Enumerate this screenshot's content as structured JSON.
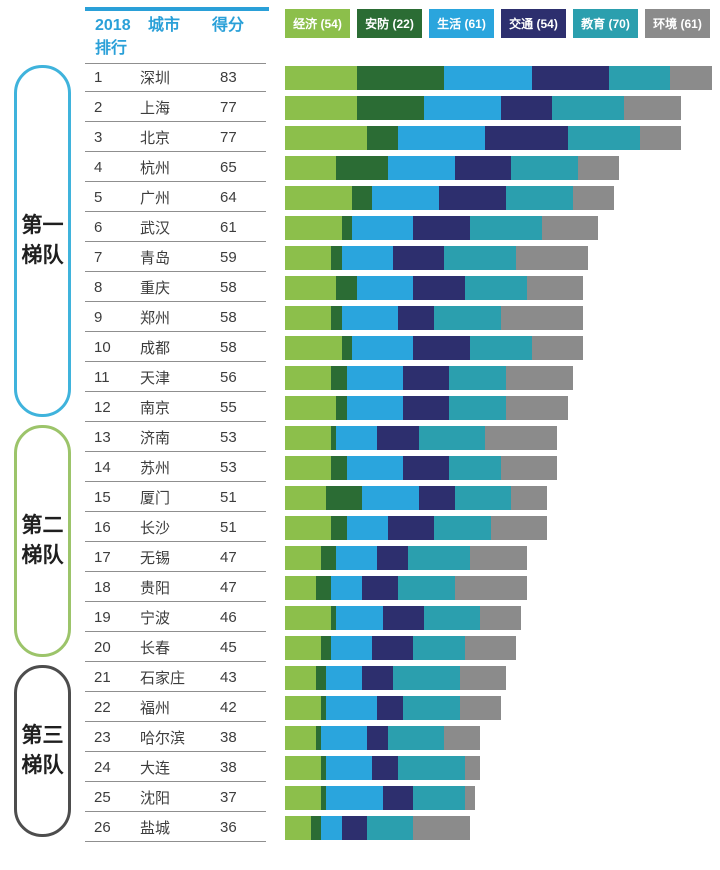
{
  "table": {
    "header": {
      "rank_line1": "2018",
      "rank_line2": "排行",
      "city": "城市",
      "score": "得分"
    },
    "header_text_color": "#2aa0d8",
    "header_rule_color": "#2aa0d8"
  },
  "legend": [
    {
      "key": "economy",
      "label": "经济 (54)",
      "color": "#8cbf4b"
    },
    {
      "key": "security",
      "label": "安防 (22)",
      "color": "#2b6c34"
    },
    {
      "key": "life",
      "label": "生活 (61)",
      "color": "#2aa5dd"
    },
    {
      "key": "transport",
      "label": "交通 (54)",
      "color": "#2d2f6e"
    },
    {
      "key": "education",
      "label": "教育 (70)",
      "color": "#2b9fae"
    },
    {
      "key": "environment",
      "label": "环境 (61)",
      "color": "#8b8b8b"
    }
  ],
  "tiers": [
    {
      "label": "第一梯队",
      "lines": "第一\n梯队",
      "color": "#3fb3dc",
      "row_start": 1,
      "row_end": 12
    },
    {
      "label": "第二梯队",
      "lines": "第二\n梯队",
      "color": "#9cc46a",
      "row_start": 13,
      "row_end": 20
    },
    {
      "label": "第三梯队",
      "lines": "第三\n梯队",
      "color": "#4d4d4d",
      "row_start": 21,
      "row_end": 26
    }
  ],
  "chart_data": {
    "type": "bar",
    "orientation": "horizontal",
    "stacked": true,
    "title": "2018 排行 — 城市得分 (stacked by category)",
    "series_names": [
      "经济",
      "安防",
      "生活",
      "交通",
      "教育",
      "环境"
    ],
    "series_caps": [
      54,
      22,
      61,
      54,
      70,
      61
    ],
    "series_colors": [
      "#8cbf4b",
      "#2b6c34",
      "#2aa5dd",
      "#2d2f6e",
      "#2b9fae",
      "#8b8b8b"
    ],
    "xlim": [
      0,
      85
    ],
    "grid": false,
    "legend_position": "top",
    "value_note": "segment values estimated from bar lengths; segments of each row sum to the city total score",
    "rows": [
      {
        "rank": 1,
        "city": "深圳",
        "score": 83,
        "values": [
          14,
          17,
          17,
          15,
          12,
          8
        ]
      },
      {
        "rank": 2,
        "city": "上海",
        "score": 77,
        "values": [
          14,
          13,
          15,
          10,
          14,
          11
        ]
      },
      {
        "rank": 3,
        "city": "北京",
        "score": 77,
        "values": [
          16,
          6,
          17,
          16,
          14,
          8
        ]
      },
      {
        "rank": 4,
        "city": "杭州",
        "score": 65,
        "values": [
          10,
          10,
          13,
          11,
          13,
          8
        ]
      },
      {
        "rank": 5,
        "city": "广州",
        "score": 64,
        "values": [
          13,
          4,
          13,
          13,
          13,
          8
        ]
      },
      {
        "rank": 6,
        "city": "武汉",
        "score": 61,
        "values": [
          11,
          2,
          12,
          11,
          14,
          11
        ]
      },
      {
        "rank": 7,
        "city": "青岛",
        "score": 59,
        "values": [
          9,
          2,
          10,
          10,
          14,
          14
        ]
      },
      {
        "rank": 8,
        "city": "重庆",
        "score": 58,
        "values": [
          10,
          4,
          11,
          10,
          12,
          11
        ]
      },
      {
        "rank": 9,
        "city": "郑州",
        "score": 58,
        "values": [
          9,
          2,
          11,
          7,
          13,
          16
        ]
      },
      {
        "rank": 10,
        "city": "成都",
        "score": 58,
        "values": [
          11,
          2,
          12,
          11,
          12,
          10
        ]
      },
      {
        "rank": 11,
        "city": "天津",
        "score": 56,
        "values": [
          9,
          3,
          11,
          9,
          11,
          13
        ]
      },
      {
        "rank": 12,
        "city": "南京",
        "score": 55,
        "values": [
          10,
          2,
          11,
          9,
          11,
          12
        ]
      },
      {
        "rank": 13,
        "city": "济南",
        "score": 53,
        "values": [
          9,
          1,
          8,
          8,
          13,
          14
        ]
      },
      {
        "rank": 14,
        "city": "苏州",
        "score": 53,
        "values": [
          9,
          3,
          11,
          9,
          10,
          11
        ]
      },
      {
        "rank": 15,
        "city": "厦门",
        "score": 51,
        "values": [
          8,
          7,
          11,
          7,
          11,
          7
        ]
      },
      {
        "rank": 16,
        "city": "长沙",
        "score": 51,
        "values": [
          9,
          3,
          8,
          9,
          11,
          11
        ]
      },
      {
        "rank": 17,
        "city": "无锡",
        "score": 47,
        "values": [
          7,
          3,
          8,
          6,
          12,
          11
        ]
      },
      {
        "rank": 18,
        "city": "贵阳",
        "score": 47,
        "values": [
          6,
          3,
          6,
          7,
          11,
          14
        ]
      },
      {
        "rank": 19,
        "city": "宁波",
        "score": 46,
        "values": [
          9,
          1,
          9,
          8,
          11,
          8
        ]
      },
      {
        "rank": 20,
        "city": "长春",
        "score": 45,
        "values": [
          7,
          2,
          8,
          8,
          10,
          10
        ]
      },
      {
        "rank": 21,
        "city": "石家庄",
        "score": 43,
        "values": [
          6,
          2,
          7,
          6,
          13,
          9
        ]
      },
      {
        "rank": 22,
        "city": "福州",
        "score": 42,
        "values": [
          7,
          1,
          10,
          5,
          11,
          8
        ]
      },
      {
        "rank": 23,
        "city": "哈尔滨",
        "score": 38,
        "values": [
          6,
          1,
          9,
          4,
          11,
          7
        ]
      },
      {
        "rank": 24,
        "city": "大连",
        "score": 38,
        "values": [
          7,
          1,
          9,
          5,
          13,
          3
        ]
      },
      {
        "rank": 25,
        "city": "沈阳",
        "score": 37,
        "values": [
          7,
          1,
          11,
          6,
          10,
          2
        ]
      },
      {
        "rank": 26,
        "city": "盐城",
        "score": 36,
        "values": [
          5,
          2,
          4,
          5,
          9,
          11
        ]
      }
    ]
  }
}
